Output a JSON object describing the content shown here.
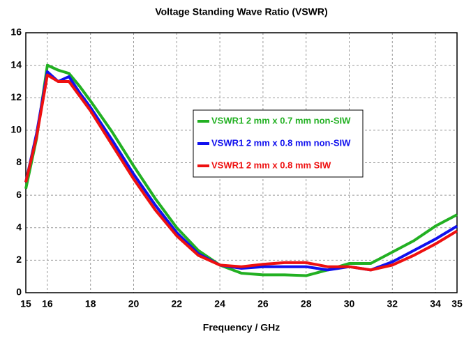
{
  "chart_data": {
    "type": "line",
    "title": "Voltage Standing Wave Ratio (VSWR)",
    "x_label": "Frequency / GHz",
    "x": [
      15,
      15.5,
      16,
      16.5,
      17,
      17.5,
      18,
      19,
      20,
      21,
      22,
      23,
      24,
      25,
      26,
      27,
      28,
      29,
      30,
      31,
      32,
      33,
      34,
      35
    ],
    "series": [
      {
        "name": "VSWR1 2 mm x 0.7 mm non-SIW",
        "color": "#22b022",
        "values": [
          6.4,
          9.5,
          14.0,
          13.7,
          13.5,
          12.7,
          11.8,
          9.9,
          7.8,
          5.8,
          4.0,
          2.6,
          1.7,
          1.2,
          1.1,
          1.1,
          1.05,
          1.4,
          1.8,
          1.8,
          2.5,
          3.2,
          4.1,
          4.8
        ]
      },
      {
        "name": "VSWR1 2 mm x 0.8 mm non-SIW",
        "color": "#1010ee",
        "values": [
          6.8,
          9.8,
          13.6,
          13.0,
          13.3,
          12.3,
          11.4,
          9.4,
          7.3,
          5.4,
          3.7,
          2.4,
          1.7,
          1.5,
          1.6,
          1.6,
          1.6,
          1.4,
          1.6,
          1.4,
          1.9,
          2.6,
          3.3,
          4.1
        ]
      },
      {
        "name": "VSWR1 2 mm x 0.8 mm SIW",
        "color": "#ee1010",
        "values": [
          6.8,
          9.6,
          13.4,
          13.0,
          13.0,
          12.1,
          11.2,
          9.1,
          7.0,
          5.1,
          3.5,
          2.3,
          1.7,
          1.6,
          1.75,
          1.85,
          1.85,
          1.6,
          1.6,
          1.4,
          1.7,
          2.3,
          3.0,
          3.8
        ]
      }
    ],
    "xlim": [
      15,
      35
    ],
    "xticks": [
      15,
      16,
      18,
      20,
      22,
      24,
      26,
      28,
      30,
      32,
      34,
      35
    ],
    "ylim": [
      0,
      16
    ],
    "yticks": [
      0,
      2,
      4,
      6,
      8,
      10,
      12,
      14,
      16
    ],
    "grid": true
  }
}
